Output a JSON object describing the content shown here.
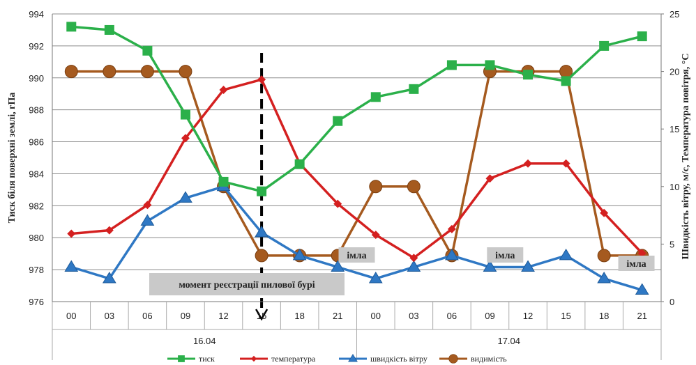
{
  "chart_data": {
    "type": "line",
    "categories": [
      "00",
      "03",
      "06",
      "09",
      "12",
      "15",
      "18",
      "21",
      "00",
      "03",
      "06",
      "09",
      "12",
      "15",
      "18",
      "21"
    ],
    "groups": [
      {
        "label": "16.04",
        "span": [
          0,
          7
        ]
      },
      {
        "label": "17.04",
        "span": [
          8,
          15
        ]
      }
    ],
    "series": [
      {
        "name": "тиск",
        "axis": "left",
        "color": "#2bb04a",
        "marker": "square",
        "values": [
          993.2,
          993.0,
          991.7,
          987.7,
          983.5,
          982.9,
          984.6,
          987.3,
          988.8,
          989.3,
          990.8,
          990.8,
          990.2,
          989.8,
          992.0,
          992.6
        ]
      },
      {
        "name": "температура",
        "axis": "right",
        "color": "#d42020",
        "marker": "diamond",
        "values": [
          5.9,
          6.2,
          8.4,
          14.2,
          18.4,
          19.3,
          12.0,
          8.5,
          5.8,
          3.8,
          6.3,
          10.7,
          12.0,
          12.0,
          7.7,
          4.2
        ]
      },
      {
        "name": "швидкість вітру",
        "axis": "right",
        "color": "#2f78c4",
        "marker": "triangle",
        "values": [
          3,
          2,
          7,
          9,
          10,
          6,
          4,
          3,
          2,
          3,
          4,
          3,
          3,
          4,
          2,
          1
        ]
      },
      {
        "name": "видимість",
        "axis": "right",
        "color": "#a55a1f",
        "marker": "circle",
        "values": [
          20,
          20,
          20,
          20,
          10,
          4,
          4,
          4,
          10,
          10,
          4,
          20,
          20,
          20,
          4,
          4
        ]
      }
    ],
    "y_left": {
      "label": "Тиск біля поверхні землі, гПа",
      "min": 976,
      "max": 994,
      "ticks": [
        976,
        978,
        980,
        982,
        984,
        986,
        988,
        990,
        992,
        994
      ]
    },
    "y_right": {
      "label": "Швидкість вітру, м/с, Температура повітря, °С",
      "min": 0,
      "max": 25,
      "ticks": [
        0,
        5,
        10,
        15,
        20,
        25
      ]
    },
    "annotations": [
      {
        "text": "імла",
        "index": 7.5
      },
      {
        "text": "імла",
        "index": 11.4
      },
      {
        "text": "імла",
        "index": 14.85
      }
    ],
    "event": {
      "text": "момент реєстрації пилової бурі",
      "index": 5
    },
    "grid": true,
    "legend": "bottom"
  }
}
